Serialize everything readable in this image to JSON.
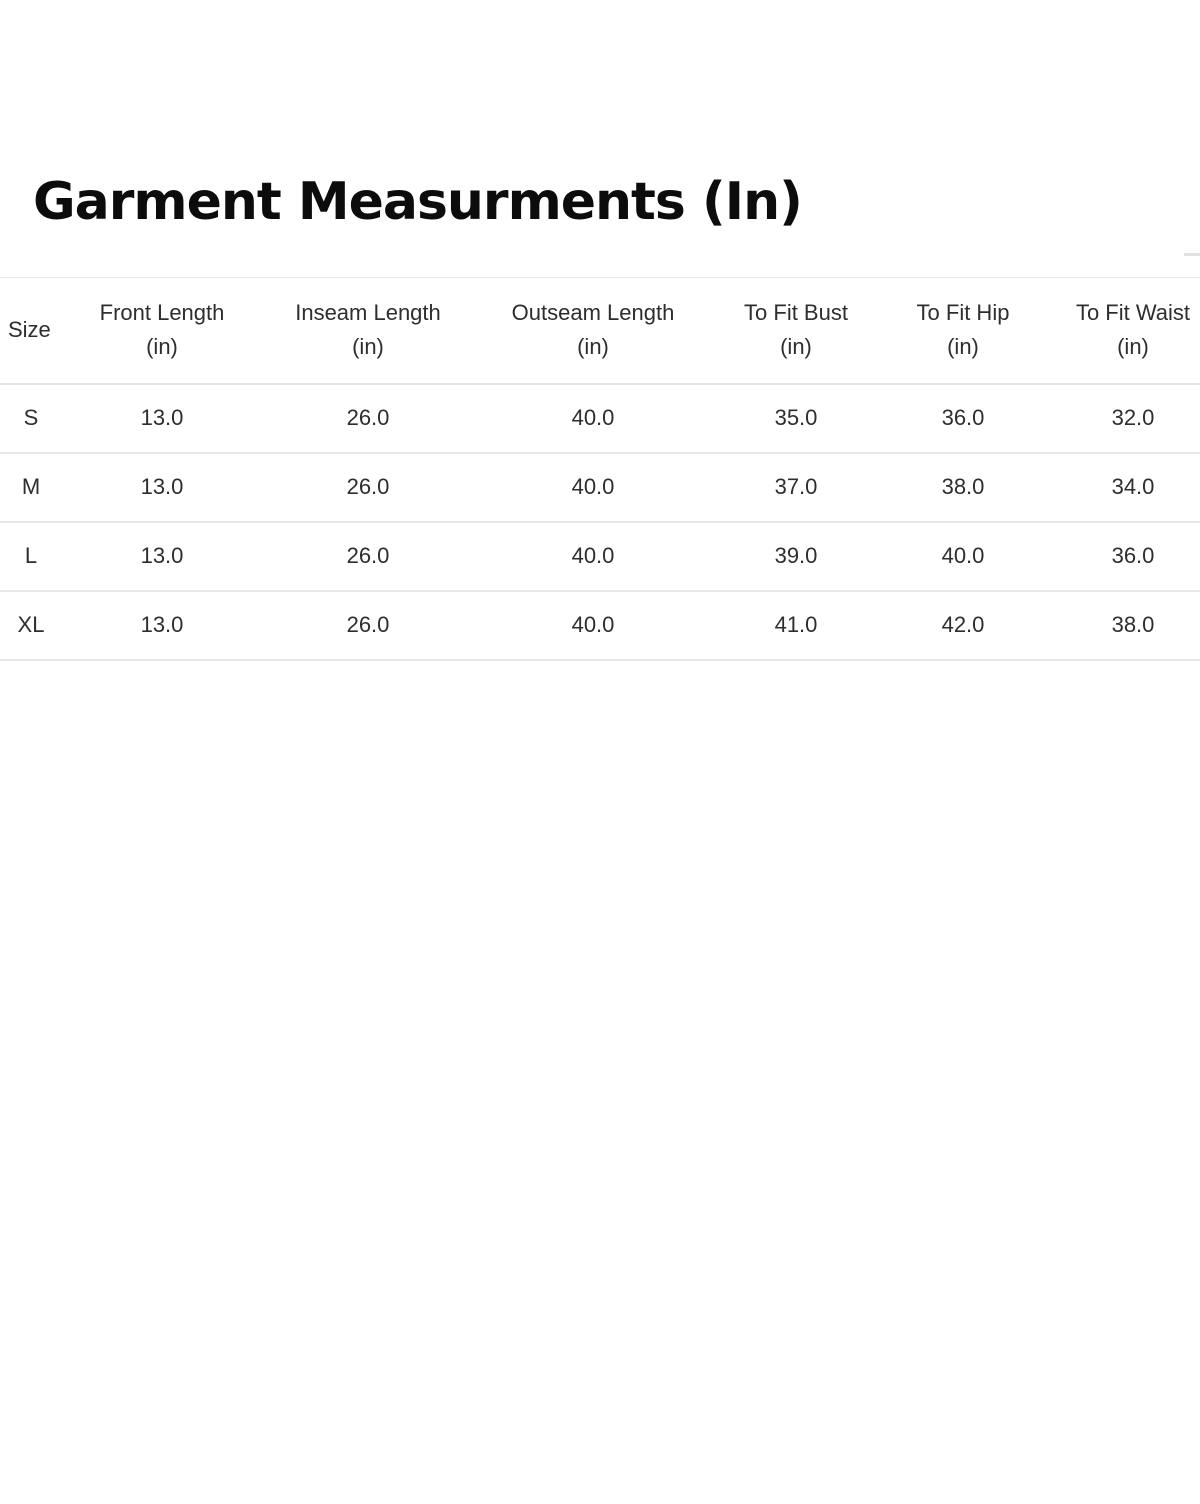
{
  "page": {
    "title": "Garment Measurments (In)"
  },
  "size_chart": {
    "columns": [
      {
        "label": "Size",
        "unit": ""
      },
      {
        "label": "Front Length",
        "unit": "(in)"
      },
      {
        "label": "Inseam Length",
        "unit": "(in)"
      },
      {
        "label": "Outseam Length",
        "unit": "(in)"
      },
      {
        "label": "To Fit Bust",
        "unit": "(in)"
      },
      {
        "label": "To Fit Hip",
        "unit": "(in)"
      },
      {
        "label": "To Fit Waist",
        "unit": "(in)"
      }
    ],
    "rows": [
      {
        "size": "S",
        "values": [
          "13.0",
          "26.0",
          "40.0",
          "35.0",
          "36.0",
          "32.0"
        ]
      },
      {
        "size": "M",
        "values": [
          "13.0",
          "26.0",
          "40.0",
          "37.0",
          "38.0",
          "34.0"
        ]
      },
      {
        "size": "L",
        "values": [
          "13.0",
          "26.0",
          "40.0",
          "39.0",
          "40.0",
          "36.0"
        ]
      },
      {
        "size": "XL",
        "values": [
          "13.0",
          "26.0",
          "40.0",
          "41.0",
          "42.0",
          "38.0"
        ]
      }
    ]
  },
  "colors": {
    "text": "#2e2e2e",
    "title": "#0c0c0c",
    "divider": "#e8e8e8",
    "background": "#ffffff"
  }
}
